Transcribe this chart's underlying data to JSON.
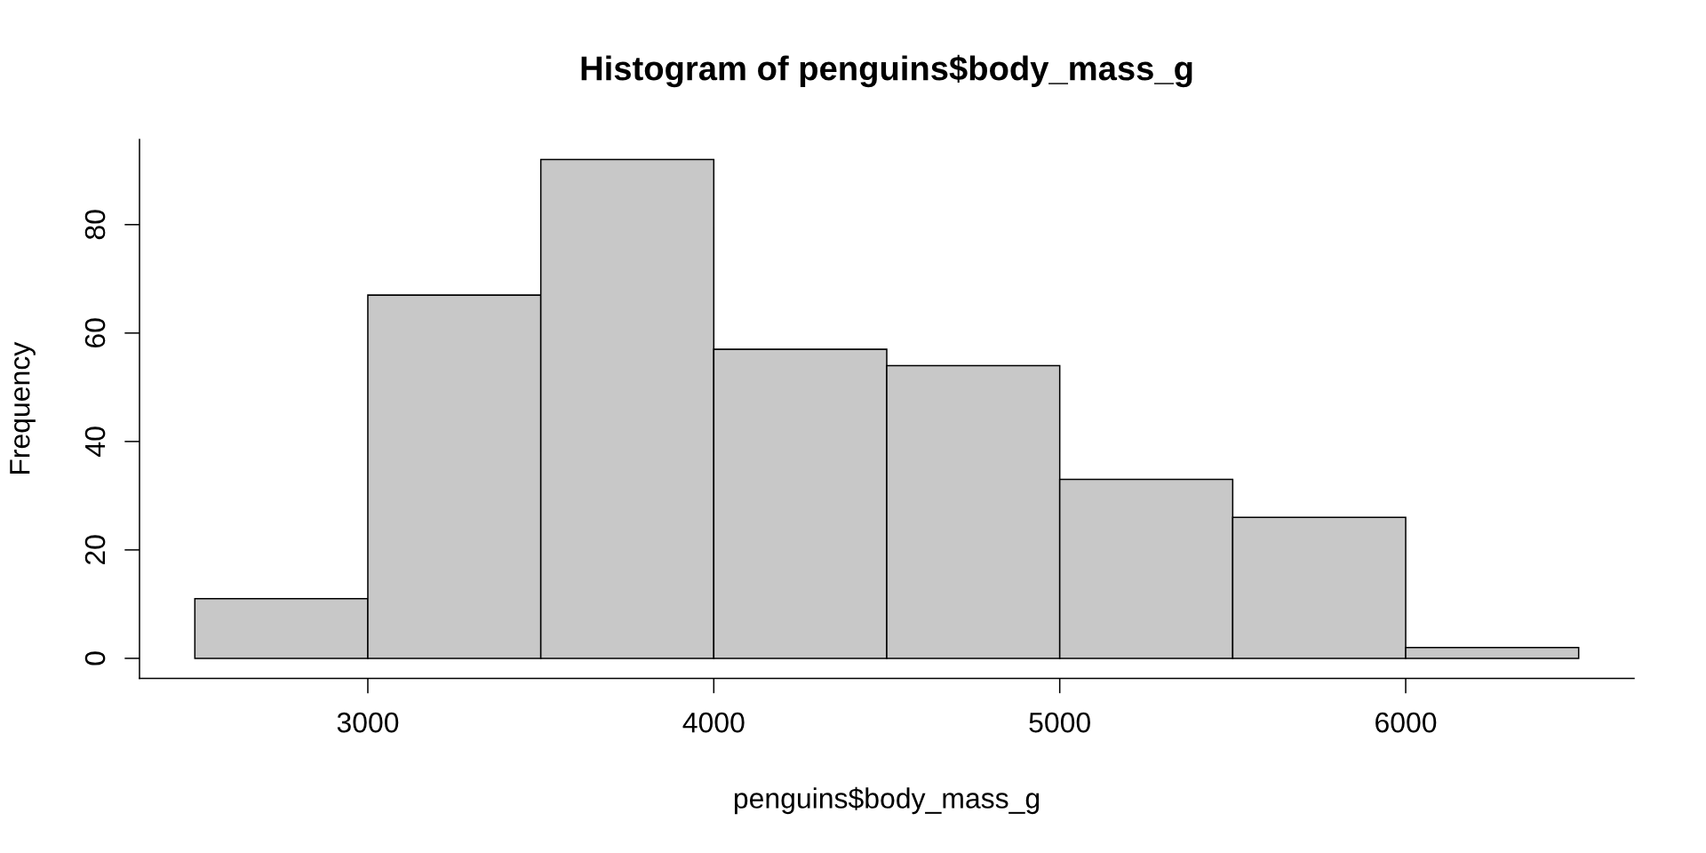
{
  "chart_data": {
    "type": "histogram",
    "title": "Histogram of penguins$body_mass_g",
    "xlabel": "penguins$body_mass_g",
    "ylabel": "Frequency",
    "bins": [
      2500,
      3000,
      3500,
      4000,
      4500,
      5000,
      5500,
      6000,
      6500
    ],
    "values": [
      11,
      67,
      92,
      57,
      54,
      33,
      26,
      2
    ],
    "color": "#c8c8c8",
    "xlim": [
      2340,
      6660
    ],
    "ylim": [
      -3.7,
      95.7
    ],
    "xticks": [
      3000,
      4000,
      5000,
      6000
    ],
    "yticks": [
      0,
      20,
      40,
      60,
      80
    ],
    "grid": false
  }
}
